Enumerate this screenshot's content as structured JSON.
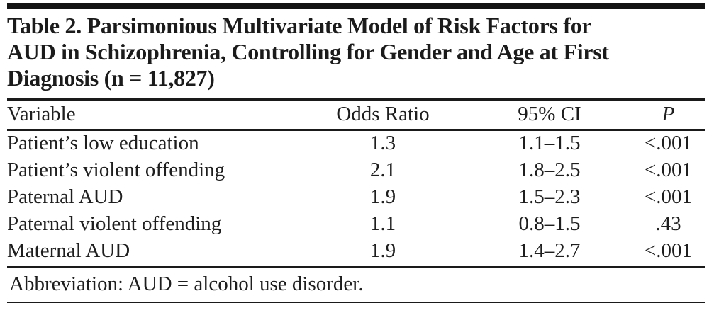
{
  "table": {
    "title_lines": [
      "Table 2. Parsimonious Multivariate Model of Risk Factors for",
      "AUD in Schizophrenia, Controlling for Gender and Age at First",
      "Diagnosis (n = 11,827)"
    ],
    "columns": [
      "Variable",
      "Odds Ratio",
      "95% CI",
      "P"
    ],
    "rows": [
      [
        "Patient’s low education",
        "1.3",
        "1.1–1.5",
        "<.001"
      ],
      [
        "Patient’s violent offending",
        "2.1",
        "1.8–2.5",
        "<.001"
      ],
      [
        "Paternal AUD",
        "1.9",
        "1.5–2.3",
        "<.001"
      ],
      [
        "Paternal violent offending",
        "1.1",
        "0.8–1.5",
        ".43"
      ],
      [
        "Maternal AUD",
        "1.9",
        "1.4–2.7",
        "<.001"
      ]
    ],
    "footnote": "Abbreviation: AUD = alcohol use disorder.",
    "colors": {
      "text": "#1e1e1e",
      "rule": "#1a1a1a",
      "top_bar": "#141414",
      "background": "#ffffff"
    }
  }
}
